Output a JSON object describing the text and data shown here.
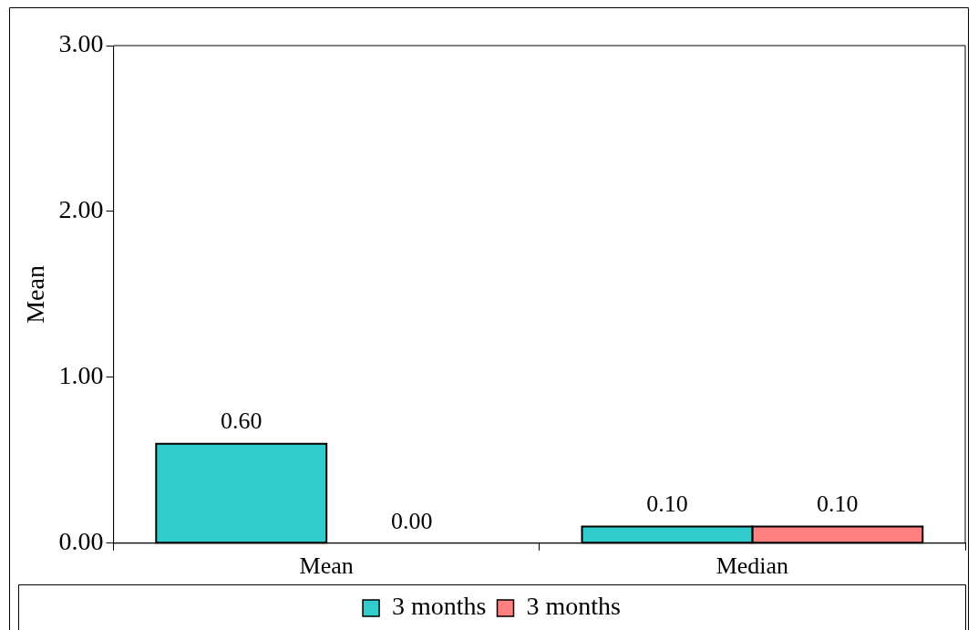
{
  "chart_data": {
    "type": "bar",
    "ylabel": "Mean",
    "categories": [
      "Mean",
      "Median"
    ],
    "series": [
      {
        "name": "3 months",
        "color": "#33cccc",
        "values": [
          0.6,
          0.1
        ]
      },
      {
        "name": "3 months",
        "color": "#ff8080",
        "values": [
          0.0,
          0.1
        ]
      }
    ],
    "ylim": [
      0,
      3
    ],
    "yticks": [
      {
        "value": 0,
        "label": "0.00"
      },
      {
        "value": 1,
        "label": "1.00"
      },
      {
        "value": 2,
        "label": "2.00"
      },
      {
        "value": 3,
        "label": "3.00"
      }
    ],
    "value_labels": [
      [
        "0.60",
        "0.10"
      ],
      [
        "0.00",
        "0.10"
      ]
    ],
    "legend": "bottom"
  }
}
